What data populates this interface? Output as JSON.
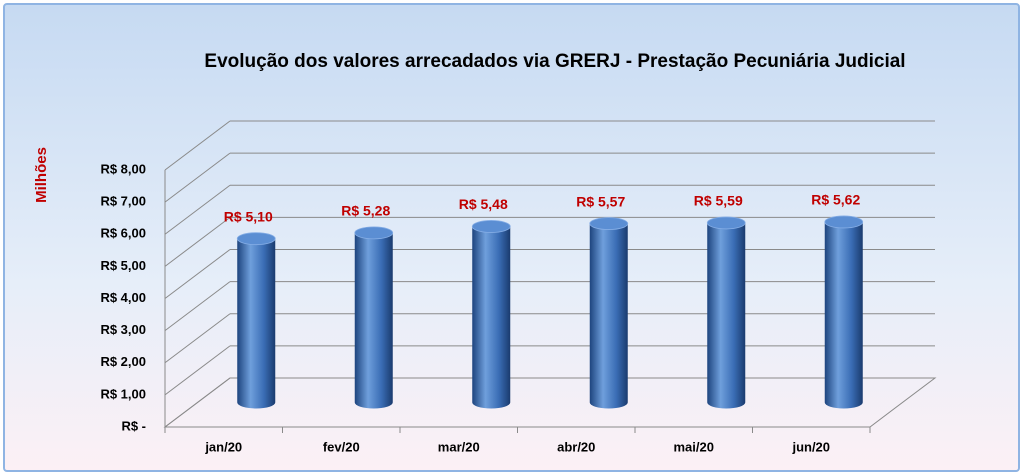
{
  "chart_data": {
    "type": "bar3d",
    "title": "Evolução dos valores arrecadados via GRERJ - Prestação Pecuniária Judicial",
    "y_label": "Milhões",
    "categories": [
      "jan/20",
      "fev/20",
      "mar/20",
      "abr/20",
      "mai/20",
      "jun/20"
    ],
    "values": [
      5.1,
      5.28,
      5.48,
      5.57,
      5.59,
      5.62
    ],
    "value_labels": [
      "R$ 5,10",
      "R$ 5,28",
      "R$ 5,48",
      "R$ 5,57",
      "R$ 5,59",
      "R$ 5,62"
    ],
    "color": "#3a6db5",
    "label_color": "#c00000",
    "ylim": [
      0,
      8
    ],
    "yticks": [
      {
        "value": 0,
        "label": "R$ -"
      },
      {
        "value": 1,
        "label": "R$ 1,00"
      },
      {
        "value": 2,
        "label": "R$ 2,00"
      },
      {
        "value": 3,
        "label": "R$ 3,00"
      },
      {
        "value": 4,
        "label": "R$ 4,00"
      },
      {
        "value": 5,
        "label": "R$ 5,00"
      },
      {
        "value": 6,
        "label": "R$ 6,00"
      },
      {
        "value": 7,
        "label": "R$ 7,00"
      },
      {
        "value": 8,
        "label": "R$ 8,00"
      }
    ],
    "grid": true
  }
}
